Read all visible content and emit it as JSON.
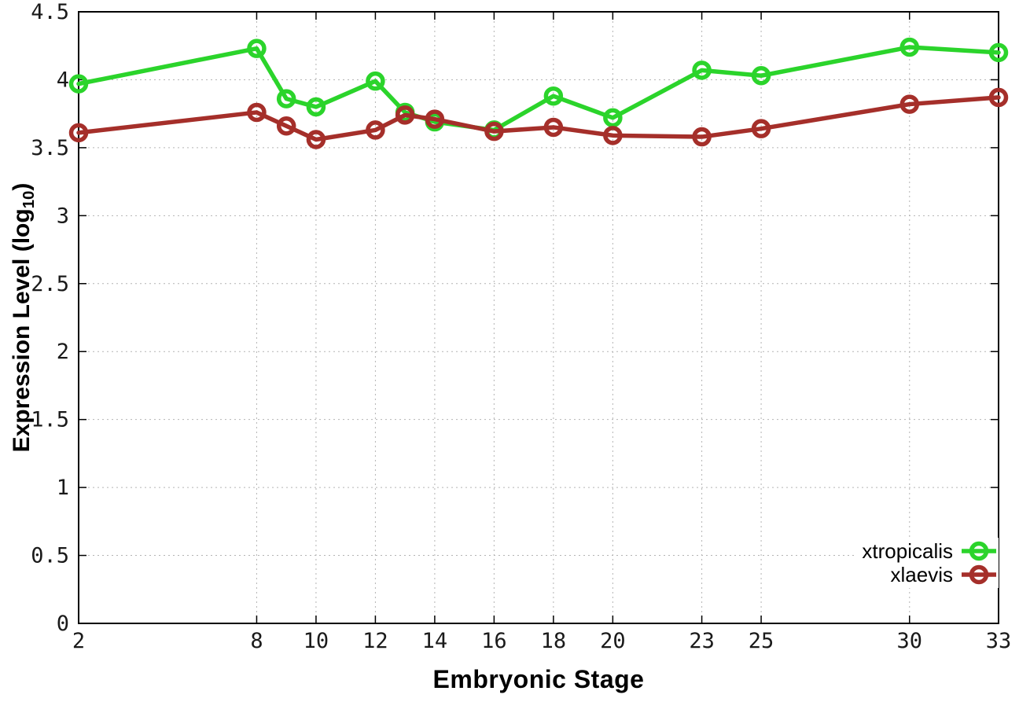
{
  "figure": {
    "background": "#ffffff",
    "axis_color": "#000000",
    "grid_color": "#b4b4b4",
    "tick_text_color": "#1a1a1a"
  },
  "chart_data": {
    "type": "line",
    "title": "",
    "xlabel": "Embryonic Stage",
    "ylabel": {
      "main": "Expression Level (log",
      "sub": "10",
      "end": ")"
    },
    "x": [
      2,
      8,
      9,
      10,
      12,
      13,
      14,
      16,
      18,
      20,
      23,
      25,
      30,
      33
    ],
    "series": [
      {
        "name": "xtropicalis",
        "color": "#2bd42b",
        "values": [
          3.97,
          4.23,
          3.86,
          3.8,
          3.99,
          3.76,
          3.69,
          3.63,
          3.88,
          3.72,
          4.07,
          4.03,
          4.24,
          4.2
        ]
      },
      {
        "name": "xlaevis",
        "color": "#a52f2a",
        "values": [
          3.61,
          3.76,
          3.66,
          3.56,
          3.63,
          3.74,
          3.71,
          3.62,
          3.65,
          3.59,
          3.58,
          3.64,
          3.82,
          3.87
        ]
      }
    ],
    "x_ticks": [
      2,
      8,
      10,
      12,
      14,
      16,
      18,
      20,
      23,
      25,
      30,
      33
    ],
    "x_tick_labels": [
      "2",
      "8",
      "10",
      "12",
      "14",
      "16",
      "18",
      "20",
      "23",
      "25",
      "30",
      "33"
    ],
    "y_ticks": [
      0,
      0.5,
      1,
      1.5,
      2,
      2.5,
      3,
      3.5,
      4,
      4.5
    ],
    "y_tick_labels": [
      "0",
      "0.5",
      "1",
      "1.5",
      "2",
      "2.5",
      "3",
      "3.5",
      "4",
      "4.5"
    ],
    "xlim": [
      2,
      33
    ],
    "ylim": [
      0,
      4.5
    ],
    "grid": true,
    "legend_position": "bottom-right",
    "marker": "open-circle"
  }
}
